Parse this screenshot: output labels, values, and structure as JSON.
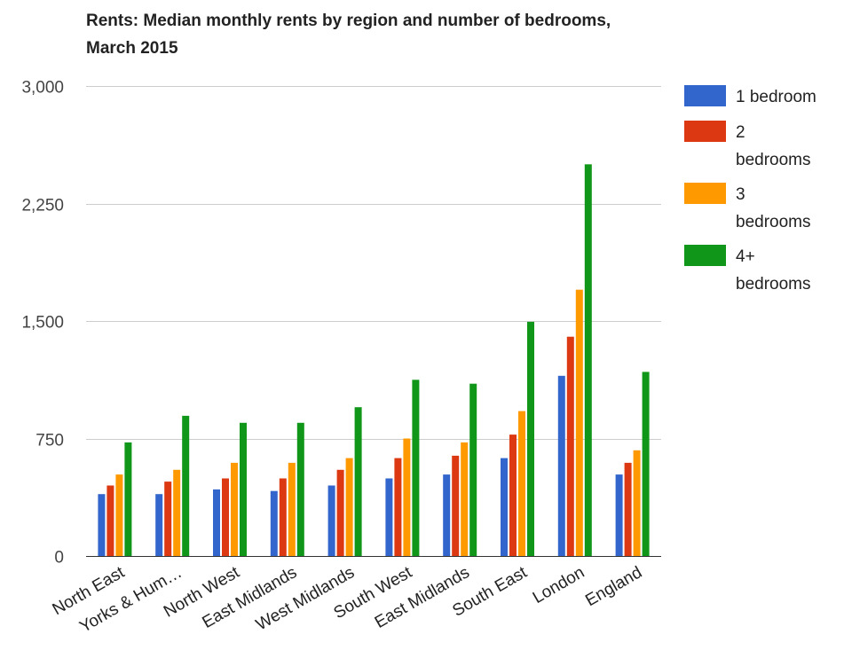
{
  "colors": {
    "series": [
      "#3366cc",
      "#dc3912",
      "#ff9900",
      "#109618"
    ],
    "grid": "#cccccc",
    "axis": "#333333"
  },
  "chart_data": {
    "type": "bar",
    "title": "Rents: Median monthly rents by region and number of bedrooms, March 2015",
    "xlabel": "",
    "ylabel": "",
    "ylim": [
      0,
      3000
    ],
    "yticks": [
      0,
      750,
      1500,
      2250,
      3000
    ],
    "ytick_labels": [
      "0",
      "750",
      "1,500",
      "2,250",
      "3,000"
    ],
    "grid": true,
    "legend_position": "right",
    "categories": [
      "North East",
      "Yorks & Hum…",
      "North West",
      "East Midlands",
      "West Midlands",
      "South West",
      "East Midlands",
      "South East",
      "London",
      "England"
    ],
    "series": [
      {
        "name": "1 bedroom",
        "values": [
          395,
          395,
          425,
          415,
          450,
          495,
          520,
          625,
          1150,
          520
        ]
      },
      {
        "name": "2 bedrooms",
        "values": [
          450,
          475,
          495,
          495,
          550,
          625,
          640,
          775,
          1400,
          595
        ]
      },
      {
        "name": "3 bedrooms",
        "values": [
          520,
          550,
          595,
          595,
          625,
          750,
          725,
          925,
          1700,
          675
        ]
      },
      {
        "name": "4+ bedrooms",
        "values": [
          725,
          895,
          850,
          850,
          950,
          1125,
          1100,
          1495,
          2500,
          1175
        ]
      }
    ]
  }
}
